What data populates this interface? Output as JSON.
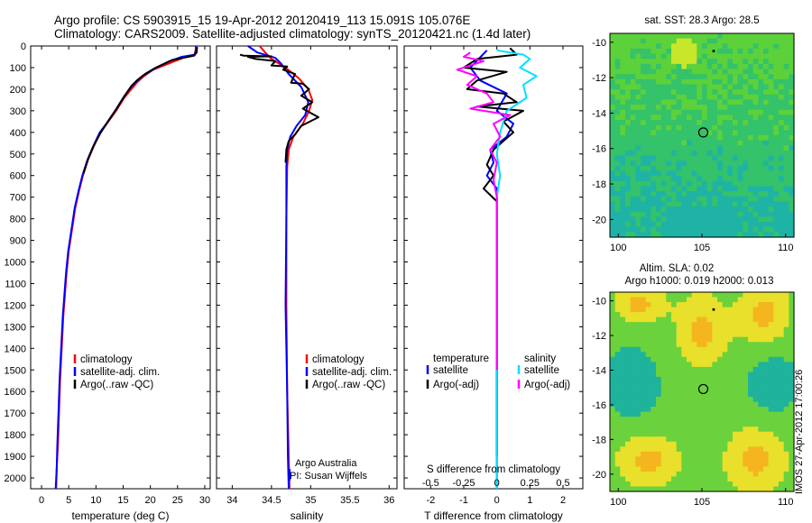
{
  "header": {
    "title_line1": "Argo profile: CS 5903915_15 19-Apr-2012 20120419_113 15.091S 105.076E",
    "title_line2": "Climatology: CARS2009. Satellite-adjusted climatology: synTS_20120421.nc (1.4d later)"
  },
  "side_stamp": "IMOS 27-Apr-2012 17:00:26",
  "chart_data": [
    {
      "id": "temperature",
      "type": "line",
      "xlabel": "temperature (deg C)",
      "ylabel": "",
      "xlim": [
        -2,
        31
      ],
      "ylim": [
        0,
        2050
      ],
      "y_reversed": true,
      "xticks": [
        "0",
        "5",
        "10",
        "15",
        "20",
        "25",
        "30"
      ],
      "yticks": [
        "0",
        "100",
        "200",
        "300",
        "400",
        "500",
        "600",
        "700",
        "800",
        "900",
        "1000",
        "1100",
        "1200",
        "1300",
        "1400",
        "1500",
        "1600",
        "1700",
        "1800",
        "1900",
        "2000"
      ],
      "legend": {
        "placement": "lower-middle",
        "entries": [
          "climatology",
          "satellite-adj. clim.",
          "Argo(..raw -QC)"
        ]
      },
      "series": [
        {
          "name": "climatology",
          "color": "#ff0000",
          "points": [
            [
              28.4,
              0
            ],
            [
              28.3,
              20
            ],
            [
              28.1,
              40
            ],
            [
              26.5,
              50
            ],
            [
              24.5,
              70
            ],
            [
              22.5,
              90
            ],
            [
              20.5,
              110
            ],
            [
              18.8,
              140
            ],
            [
              17.5,
              170
            ],
            [
              16.5,
              200
            ],
            [
              15.2,
              240
            ],
            [
              13.7,
              300
            ],
            [
              12.0,
              360
            ],
            [
              10.8,
              400
            ],
            [
              9.5,
              470
            ],
            [
              8.5,
              530
            ],
            [
              7.6,
              600
            ],
            [
              6.9,
              670
            ],
            [
              6.2,
              750
            ],
            [
              5.6,
              850
            ],
            [
              5.0,
              950
            ],
            [
              4.6,
              1050
            ],
            [
              4.3,
              1150
            ],
            [
              4.0,
              1250
            ],
            [
              3.7,
              1400
            ],
            [
              3.4,
              1550
            ],
            [
              3.2,
              1700
            ],
            [
              3.0,
              1850
            ],
            [
              2.8,
              1950
            ],
            [
              2.7,
              2050
            ]
          ]
        },
        {
          "name": "satellite-adj. clim.",
          "color": "#0000ff",
          "points": [
            [
              28.4,
              0
            ],
            [
              28.4,
              20
            ],
            [
              28.2,
              40
            ],
            [
              25.8,
              50
            ],
            [
              23.5,
              70
            ],
            [
              21.5,
              95
            ],
            [
              19.8,
              120
            ],
            [
              18.5,
              140
            ],
            [
              17.0,
              175
            ],
            [
              16.0,
              205
            ],
            [
              15.0,
              240
            ],
            [
              13.5,
              300
            ],
            [
              11.9,
              360
            ],
            [
              10.7,
              400
            ],
            [
              9.4,
              470
            ],
            [
              8.4,
              530
            ],
            [
              7.5,
              600
            ],
            [
              6.8,
              670
            ],
            [
              6.1,
              750
            ],
            [
              5.5,
              850
            ],
            [
              4.9,
              950
            ],
            [
              4.5,
              1050
            ],
            [
              4.2,
              1150
            ],
            [
              3.9,
              1250
            ],
            [
              3.6,
              1400
            ],
            [
              3.3,
              1550
            ],
            [
              3.1,
              1700
            ],
            [
              2.9,
              1850
            ],
            [
              2.8,
              1950
            ],
            [
              2.6,
              2050
            ]
          ]
        },
        {
          "name": "Argo(..raw -QC)",
          "color": "#000000",
          "points": [
            [
              28.6,
              5
            ],
            [
              28.5,
              30
            ],
            [
              28.0,
              45
            ],
            [
              24.0,
              65
            ],
            [
              21.0,
              100
            ],
            [
              19.0,
              130
            ],
            [
              17.5,
              160
            ],
            [
              16.5,
              185
            ],
            [
              15.3,
              230
            ],
            [
              13.8,
              290
            ],
            [
              12.2,
              350
            ],
            [
              10.9,
              400
            ],
            [
              9.6,
              460
            ],
            [
              8.6,
              520
            ],
            [
              7.7,
              590
            ]
          ]
        }
      ]
    },
    {
      "id": "salinity",
      "type": "line",
      "xlabel": "salinity",
      "ylabel": "",
      "xlim": [
        33.8,
        36.1
      ],
      "ylim": [
        0,
        2050
      ],
      "y_reversed": true,
      "xticks": [
        "34",
        "34.5",
        "35",
        "35.5",
        "36"
      ],
      "annotation": [
        "Argo Australia",
        "PI: Susan Wijffels"
      ],
      "legend": {
        "placement": "lower-middle",
        "entries": [
          "climatology",
          "satellite-adj. clim.",
          "Argo(..raw -QC)"
        ]
      },
      "series": [
        {
          "name": "climatology",
          "color": "#ff0000",
          "points": [
            [
              34.35,
              0
            ],
            [
              34.42,
              30
            ],
            [
              34.5,
              60
            ],
            [
              34.68,
              100
            ],
            [
              34.85,
              150
            ],
            [
              34.97,
              200
            ],
            [
              35.02,
              250
            ],
            [
              34.98,
              300
            ],
            [
              34.9,
              360
            ],
            [
              34.78,
              420
            ],
            [
              34.72,
              480
            ],
            [
              34.7,
              560
            ],
            [
              34.69,
              800
            ],
            [
              34.69,
              1200
            ],
            [
              34.7,
              1600
            ],
            [
              34.72,
              1900
            ],
            [
              34.73,
              2050
            ]
          ]
        },
        {
          "name": "satellite-adj. clim.",
          "color": "#0000ff",
          "points": [
            [
              34.2,
              0
            ],
            [
              34.32,
              30
            ],
            [
              34.55,
              55
            ],
            [
              34.62,
              80
            ],
            [
              34.65,
              95
            ],
            [
              34.72,
              130
            ],
            [
              34.88,
              190
            ],
            [
              34.97,
              260
            ],
            [
              34.93,
              320
            ],
            [
              34.82,
              370
            ],
            [
              34.74,
              420
            ],
            [
              34.7,
              480
            ],
            [
              34.69,
              560
            ],
            [
              34.69,
              800
            ],
            [
              34.68,
              1200
            ],
            [
              34.7,
              1600
            ],
            [
              34.71,
              1900
            ],
            [
              34.72,
              2050
            ]
          ]
        },
        {
          "name": "Argo(..raw -QC)",
          "color": "#000000",
          "points": [
            [
              34.1,
              40
            ],
            [
              34.15,
              45
            ],
            [
              34.5,
              48
            ],
            [
              34.2,
              50
            ],
            [
              34.3,
              60
            ],
            [
              34.55,
              70
            ],
            [
              34.5,
              90
            ],
            [
              34.7,
              95
            ],
            [
              34.65,
              110
            ],
            [
              34.8,
              130
            ],
            [
              34.75,
              170
            ],
            [
              34.9,
              175
            ],
            [
              34.98,
              200
            ],
            [
              34.88,
              230
            ],
            [
              35.02,
              260
            ],
            [
              34.9,
              290
            ],
            [
              35.1,
              330
            ],
            [
              34.88,
              370
            ],
            [
              34.8,
              410
            ],
            [
              34.72,
              440
            ],
            [
              34.69,
              480
            ],
            [
              34.68,
              540
            ]
          ]
        }
      ]
    },
    {
      "id": "difference",
      "type": "line",
      "xlabel": "T difference from climatology",
      "xlabel_top": "S difference from climatology",
      "ylabel": "",
      "xlim": [
        -2.8,
        2.6
      ],
      "ylim": [
        0,
        2050
      ],
      "y_reversed": true,
      "xticks": [
        "-2",
        "-1",
        "0",
        "1",
        "2"
      ],
      "xticks_top": [
        "-0.5",
        "-0.25",
        "0",
        "0.25",
        "0.5"
      ],
      "legend": {
        "placement": "lower-middle",
        "headers": [
          "temperature",
          "salinity"
        ],
        "entries": [
          "satellite",
          "Argo(-adj)",
          "satellite",
          "Argo(-adj)"
        ]
      },
      "series": [
        {
          "name": "satellite",
          "group": "temperature",
          "color": "#0000ff",
          "points": [
            [
              -0.3,
              20
            ],
            [
              -0.8,
              100
            ],
            [
              -0.5,
              160
            ],
            [
              0.3,
              220
            ],
            [
              0.0,
              300
            ],
            [
              0.5,
              360
            ],
            [
              0.3,
              420
            ],
            [
              -0.2,
              480
            ],
            [
              -0.1,
              540
            ],
            [
              -0.3,
              600
            ],
            [
              0.0,
              660
            ],
            [
              0.0,
              800
            ],
            [
              0.0,
              1200
            ],
            [
              0.0,
              1600
            ],
            [
              0.0,
              2050
            ]
          ]
        },
        {
          "name": "Argo(-adj)",
          "group": "temperature",
          "color": "#000000",
          "points": [
            [
              0.4,
              10
            ],
            [
              0.6,
              40
            ],
            [
              -0.6,
              60
            ],
            [
              -1.0,
              100
            ],
            [
              0.3,
              120
            ],
            [
              -0.6,
              160
            ],
            [
              -0.9,
              200
            ],
            [
              0.2,
              220
            ],
            [
              0.6,
              260
            ],
            [
              -0.6,
              280
            ],
            [
              0.8,
              300
            ],
            [
              0.2,
              350
            ],
            [
              0.5,
              400
            ],
            [
              -0.1,
              480
            ],
            [
              -0.3,
              550
            ],
            [
              -0.1,
              600
            ],
            [
              -0.4,
              660
            ],
            [
              0.0,
              720
            ],
            [
              0.0,
              1000
            ],
            [
              0.0,
              1500
            ],
            [
              0.0,
              1900
            ]
          ]
        },
        {
          "name": "satellite",
          "group": "salinity",
          "color": "#00e0ff",
          "points": [
            [
              0.0,
              20
            ],
            [
              0.8,
              40
            ],
            [
              1.0,
              60
            ],
            [
              0.7,
              100
            ],
            [
              1.2,
              140
            ],
            [
              0.8,
              180
            ],
            [
              0.9,
              240
            ],
            [
              0.3,
              300
            ],
            [
              0.1,
              400
            ],
            [
              0.0,
              500
            ],
            [
              0.1,
              600
            ],
            [
              0.0,
              700
            ],
            [
              0.0,
              1000
            ],
            [
              0.0,
              1500
            ],
            [
              0.0,
              2050
            ]
          ]
        },
        {
          "name": "Argo(-adj)",
          "group": "salinity",
          "color": "#ff00ff",
          "points": [
            [
              -0.8,
              30
            ],
            [
              -1.0,
              50
            ],
            [
              -0.4,
              70
            ],
            [
              -1.2,
              110
            ],
            [
              -0.6,
              140
            ],
            [
              -0.9,
              180
            ],
            [
              -0.3,
              220
            ],
            [
              -0.1,
              260
            ],
            [
              -0.8,
              290
            ],
            [
              0.4,
              320
            ],
            [
              -0.1,
              360
            ],
            [
              0.1,
              420
            ],
            [
              -0.2,
              480
            ],
            [
              0.0,
              540
            ],
            [
              -0.1,
              620
            ],
            [
              0.0,
              700
            ],
            [
              0.0,
              1000
            ],
            [
              0.0,
              1500
            ]
          ]
        }
      ]
    },
    {
      "id": "sst_map",
      "type": "heatmap",
      "title": "sat. SST: 28.3  Argo: 28.5",
      "xlim": [
        99.5,
        110.5
      ],
      "ylim": [
        -21,
        -9.5
      ],
      "xticks": [
        "100",
        "105",
        "110"
      ],
      "yticks": [
        "-10",
        "-12",
        "-14",
        "-16",
        "-18",
        "-20"
      ],
      "colors": {
        "warm": "#5cd13a",
        "mid": "#34c26a",
        "cool": "#1fb3a6",
        "hot": "#c8e62a"
      },
      "markers": [
        {
          "kind": "profile-circle",
          "lon": 105.08,
          "lat": -15.09
        },
        {
          "kind": "dot",
          "lon": 105.7,
          "lat": -10.5
        }
      ]
    },
    {
      "id": "sla_map",
      "type": "heatmap",
      "title": "Altim. SLA: 0.02",
      "subtitle": "Argo h1000: 0.019  h2000: 0.013",
      "xlim": [
        99.5,
        110.5
      ],
      "ylim": [
        -21,
        -9.5
      ],
      "xticks": [
        "100",
        "105",
        "110"
      ],
      "yticks": [
        "-10",
        "-12",
        "-14",
        "-16",
        "-18",
        "-20"
      ],
      "colors": {
        "high": "#f5b51e",
        "upper": "#e8e02a",
        "mid": "#6bd23d",
        "low": "#1fb39c"
      },
      "markers": [
        {
          "kind": "profile-circle",
          "lon": 105.08,
          "lat": -15.09
        },
        {
          "kind": "dot",
          "lon": 105.7,
          "lat": -10.5
        }
      ]
    }
  ]
}
